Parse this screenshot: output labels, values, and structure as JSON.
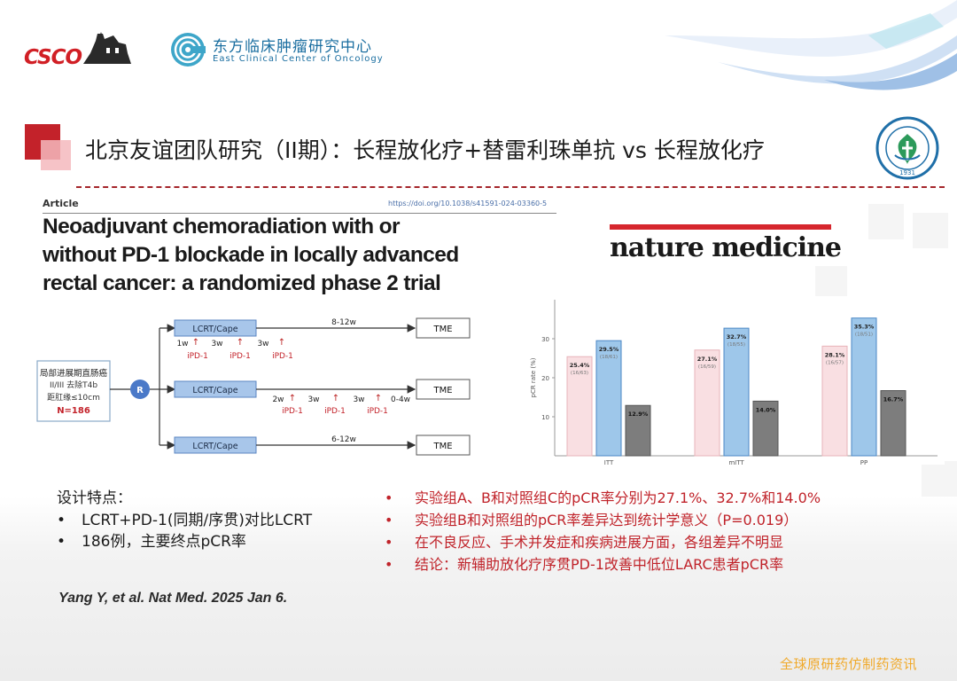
{
  "header": {
    "csco_logo_text": "CSCO",
    "center_name_cn": "东方临床肿瘤研究中心",
    "center_name_en": "East Clinical Center of Oncology"
  },
  "slide_title": "北京友谊团队研究（II期）：长程放化疗+替雷利珠单抗 vs 长程放化疗",
  "seal_year": "1931",
  "article": {
    "label": "Article",
    "doi": "https://doi.org/10.1038/s41591-024-03360-5",
    "title_lines": [
      "Neoadjuvant chemoradiation with or",
      "without PD-1 blockade in locally advanced",
      "rectal cancer: a randomized phase 2 trial"
    ],
    "journal": "nature medicine"
  },
  "schema": {
    "patient_lines": [
      "局部进展期直肠癌",
      "II/III 去除T4b",
      "距肛缘≤10cm",
      "N=186"
    ],
    "randomize_label": "R",
    "arms": [
      {
        "treatment": "LCRT/Cape",
        "duration": "8-12w",
        "endpoint": "TME",
        "timeline": [
          "1w",
          "3w",
          "3w"
        ],
        "doses": [
          "iPD-1",
          "iPD-1",
          "iPD-1"
        ]
      },
      {
        "treatment": "LCRT/Cape",
        "duration": "0-4w",
        "endpoint": "TME",
        "timeline": [
          "2w",
          "3w",
          "3w"
        ],
        "doses": [
          "iPD-1",
          "iPD-1",
          "iPD-1"
        ]
      },
      {
        "treatment": "LCRT/Cape",
        "duration": "6-12w",
        "endpoint": "TME",
        "timeline": [],
        "doses": []
      }
    ]
  },
  "chart_data": {
    "type": "bar",
    "ylabel": "pCR rate (%)",
    "ylim": [
      0,
      40
    ],
    "yticks": [
      10,
      20,
      30
    ],
    "categories": [
      "ITT",
      "mITT",
      "PP"
    ],
    "colors": [
      "#f9dfe2",
      "#9ec7ea",
      "#7d7d7d"
    ],
    "series": [
      {
        "values": [
          25.4,
          27.1,
          28.1
        ],
        "labels": [
          "25.4%",
          "27.1%",
          "28.1%"
        ],
        "counts": [
          "(16/63)",
          "(16/59)",
          "(16/57)"
        ]
      },
      {
        "values": [
          29.5,
          32.7,
          35.3
        ],
        "labels": [
          "29.5%",
          "32.7%",
          "35.3%"
        ],
        "counts": [
          "(18/61)",
          "(18/55)",
          "(18/51)"
        ]
      },
      {
        "values": [
          12.9,
          14.0,
          16.7
        ],
        "labels": [
          "12.9%",
          "14.0%",
          "16.7%"
        ],
        "counts": [
          "",
          "",
          ""
        ]
      }
    ]
  },
  "design": {
    "title": "设计特点：",
    "items": [
      "LCRT+PD-1(同期/序贯)对比LCRT",
      "186例，主要终点pCR率"
    ],
    "bullet": "•"
  },
  "results": {
    "bullet": "•",
    "items": [
      "实验组A、B和对照组C的pCR率分别为27.1%、32.7%和14.0%",
      "实验组B和对照组的pCR率差异达到统计学意义（P=0.019）",
      "在不良反应、手术并发症和疾病进展方面，各组差异不明显",
      "结论：新辅助放化疗序贯PD-1改善中低位LARC患者pCR率"
    ]
  },
  "citation": "Yang Y, et al. Nat Med. 2025 Jan 6.",
  "watermark": "全球原研药仿制药资讯"
}
